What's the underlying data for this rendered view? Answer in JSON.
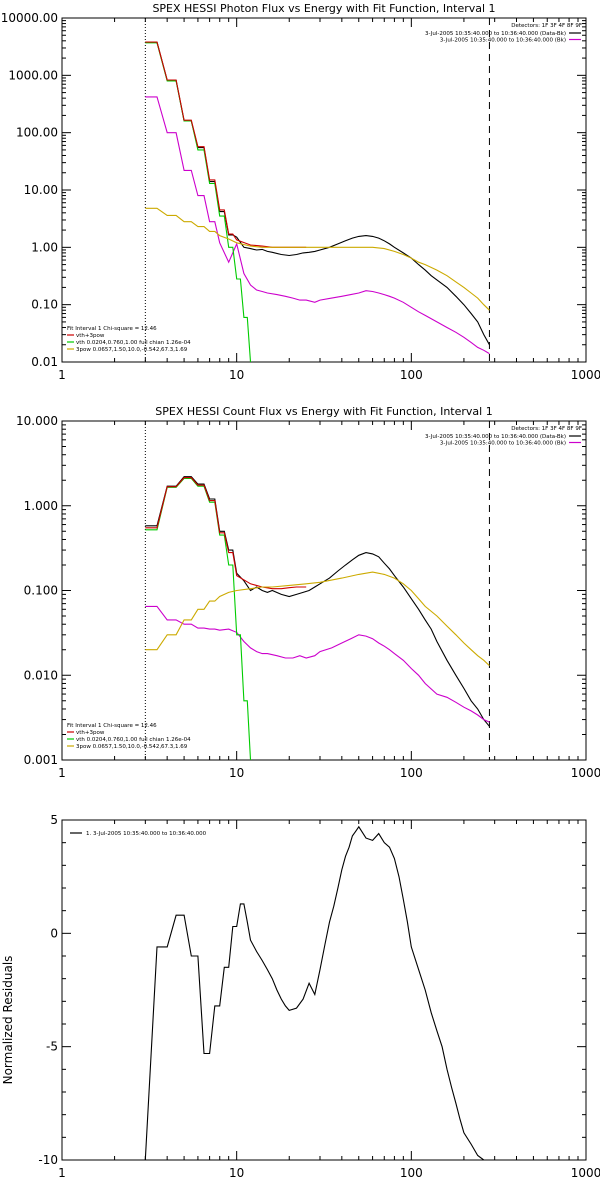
{
  "chart_data": [
    {
      "type": "line",
      "title": "SPEX HESSI Photon Flux vs Energy with Fit Function, Interval 1",
      "x_scale": "log",
      "y_scale": "log",
      "xlim": [
        1,
        1000
      ],
      "ylim": [
        0.01,
        10000
      ],
      "x_tick_labels": [
        "1",
        "10",
        "100",
        "1000"
      ],
      "y_tick_labels": [
        "0.01",
        "0.10",
        "1.00",
        "10.00",
        "100.00",
        "1000.00",
        "10000.00"
      ],
      "y_ticks": [
        0.01,
        0.1,
        1,
        10,
        100,
        1000,
        10000
      ],
      "vlines": [
        {
          "x": 3,
          "style": "dotted"
        },
        {
          "x": 280,
          "style": "dashed"
        }
      ],
      "detectors_text": "Detectors: 1F 3F 4F 8F 9F",
      "legend_top": [
        {
          "text": "3-Jul-2005 10:35:40.000 to 10:36:40.000 (Data-Bk)",
          "color": "#000000"
        },
        {
          "text": "3-Jul-2005 10:35:40.000 to 10:36:40.000 (Bk)",
          "color": "#cc00cc"
        }
      ],
      "fit_legend": [
        {
          "text": "Fit Interval 1   Chi-square = 12.46",
          "color": "#000000"
        },
        {
          "text": "vth+3pow",
          "color": "#cc0000"
        },
        {
          "text": "vth 0.0204,0.760,1.00  full chian 1.26e-04",
          "color": "#00cc00"
        },
        {
          "text": "3pow 0.0657,1.50,10.0,-0.542,67.3,1.69",
          "color": "#ccaa00"
        }
      ],
      "series": [
        {
          "color": "#000000",
          "x": [
            3,
            3.5,
            4,
            4.5,
            5,
            5.5,
            6,
            6.5,
            7,
            7.5,
            8,
            8.5,
            9,
            9.5,
            10,
            11,
            12,
            13,
            14,
            15,
            16,
            18,
            20,
            22,
            24,
            26,
            28,
            30,
            34,
            38,
            42,
            46,
            50,
            55,
            60,
            65,
            70,
            75,
            80,
            90,
            100,
            110,
            120,
            130,
            140,
            160,
            180,
            200,
            220,
            240,
            260,
            280
          ],
          "y": [
            3800,
            3800,
            820,
            820,
            160,
            160,
            55,
            55,
            14,
            14,
            4.2,
            4.2,
            1.65,
            1.65,
            1.5,
            1.0,
            0.95,
            0.9,
            0.92,
            0.85,
            0.82,
            0.75,
            0.72,
            0.75,
            0.8,
            0.82,
            0.85,
            0.9,
            1.0,
            1.15,
            1.3,
            1.45,
            1.55,
            1.6,
            1.55,
            1.45,
            1.3,
            1.15,
            1.0,
            0.8,
            0.65,
            0.5,
            0.4,
            0.32,
            0.27,
            0.2,
            0.14,
            0.1,
            0.07,
            0.05,
            0.03,
            0.02
          ]
        },
        {
          "color": "#cc00cc",
          "x": [
            3,
            3.5,
            4,
            4.5,
            5,
            5.5,
            6,
            6.5,
            7,
            7.5,
            8,
            9,
            10,
            11,
            12,
            13,
            14,
            15,
            17,
            19,
            21,
            23,
            25,
            28,
            30,
            35,
            40,
            45,
            50,
            55,
            60,
            65,
            70,
            75,
            80,
            90,
            100,
            110,
            120,
            140,
            160,
            180,
            200,
            220,
            240,
            260,
            280
          ],
          "y": [
            420,
            420,
            100,
            100,
            22,
            22,
            8,
            8,
            2.8,
            2.8,
            1.2,
            0.55,
            1.15,
            0.35,
            0.22,
            0.18,
            0.17,
            0.16,
            0.15,
            0.14,
            0.13,
            0.12,
            0.12,
            0.11,
            0.12,
            0.13,
            0.14,
            0.15,
            0.16,
            0.175,
            0.17,
            0.16,
            0.15,
            0.14,
            0.13,
            0.11,
            0.09,
            0.075,
            0.065,
            0.05,
            0.04,
            0.033,
            0.027,
            0.022,
            0.018,
            0.016,
            0.014
          ]
        },
        {
          "color": "#00cc00",
          "x": [
            3,
            3.5,
            4,
            4.5,
            5,
            5.5,
            6,
            6.5,
            7,
            7.5,
            8,
            8.5,
            9,
            9.5,
            10,
            10.5,
            11,
            11.5,
            12
          ],
          "y": [
            3700,
            3700,
            800,
            800,
            160,
            160,
            50,
            50,
            13,
            13,
            3.5,
            3.5,
            1.0,
            1.0,
            0.28,
            0.28,
            0.06,
            0.06,
            0.01
          ]
        },
        {
          "color": "#cc0000",
          "x": [
            3,
            3.5,
            4,
            4.5,
            5,
            5.5,
            6,
            6.5,
            7,
            7.5,
            8,
            8.5,
            9,
            9.5,
            10,
            12,
            14,
            16,
            18,
            20,
            22,
            25
          ],
          "y": [
            3800,
            3800,
            830,
            830,
            165,
            165,
            57,
            57,
            15,
            15,
            4.5,
            4.5,
            1.7,
            1.7,
            1.35,
            1.1,
            1.05,
            1.0,
            1.0,
            1.0,
            1.0,
            1.0
          ]
        },
        {
          "color": "#ccaa00",
          "x": [
            3,
            3.5,
            4,
            4.5,
            5,
            5.5,
            6,
            6.5,
            7,
            7.5,
            8,
            9,
            10,
            12,
            14,
            16,
            20,
            25,
            30,
            40,
            50,
            60,
            70,
            80,
            90,
            100,
            110,
            120,
            140,
            160,
            180,
            200,
            220,
            240,
            260,
            280
          ],
          "y": [
            4.8,
            4.8,
            3.6,
            3.6,
            2.8,
            2.8,
            2.3,
            2.3,
            1.9,
            1.9,
            1.6,
            1.4,
            1.2,
            1.05,
            1.0,
            1.0,
            1.0,
            1.0,
            1.0,
            1.0,
            1.0,
            1.0,
            0.95,
            0.85,
            0.75,
            0.65,
            0.55,
            0.5,
            0.4,
            0.32,
            0.25,
            0.2,
            0.16,
            0.13,
            0.1,
            0.08
          ]
        }
      ]
    },
    {
      "type": "line",
      "title": "SPEX HESSI Count Flux vs Energy with Fit Function, Interval 1",
      "x_scale": "log",
      "y_scale": "log",
      "xlim": [
        1,
        1000
      ],
      "ylim": [
        0.001,
        10
      ],
      "x_tick_labels": [
        "1",
        "10",
        "100",
        "1000"
      ],
      "y_tick_labels": [
        "0.001",
        "0.010",
        "0.100",
        "1.000",
        "10.000"
      ],
      "y_ticks": [
        0.001,
        0.01,
        0.1,
        1,
        10
      ],
      "vlines": [
        {
          "x": 3,
          "style": "dotted"
        },
        {
          "x": 280,
          "style": "dashed"
        }
      ],
      "detectors_text": "Detectors: 1F 3F 4F 8F 9F",
      "legend_top": [
        {
          "text": "3-Jul-2005 10:35:40.000 to 10:36:40.000 (Data-Bk)",
          "color": "#000000"
        },
        {
          "text": "3-Jul-2005 10:35:40.000 to 10:36:40.000 (Bk)",
          "color": "#cc00cc"
        }
      ],
      "fit_legend": [
        {
          "text": "Fit Interval 1   Chi-square = 12.46",
          "color": "#000000"
        },
        {
          "text": "vth+3pow",
          "color": "#cc0000"
        },
        {
          "text": "vth 0.0204,0.760,1.00  full chian 1.26e-04",
          "color": "#00cc00"
        },
        {
          "text": "3pow 0.0657,1.50,10.0,-0.542,67.3,1.69",
          "color": "#ccaa00"
        }
      ],
      "series": [
        {
          "color": "#000000",
          "x": [
            3,
            3.5,
            4,
            4.5,
            5,
            5.5,
            6,
            6.5,
            7,
            7.5,
            8,
            8.5,
            9,
            9.5,
            10,
            11,
            12,
            13,
            14,
            15,
            16,
            18,
            20,
            22,
            24,
            26,
            28,
            30,
            34,
            38,
            42,
            46,
            50,
            55,
            60,
            65,
            70,
            75,
            80,
            90,
            100,
            110,
            120,
            130,
            140,
            160,
            180,
            200,
            220,
            240,
            260,
            280
          ],
          "y": [
            0.58,
            0.58,
            1.7,
            1.7,
            2.2,
            2.2,
            1.8,
            1.8,
            1.2,
            1.2,
            0.5,
            0.5,
            0.3,
            0.3,
            0.16,
            0.13,
            0.1,
            0.11,
            0.1,
            0.095,
            0.1,
            0.09,
            0.085,
            0.09,
            0.095,
            0.1,
            0.11,
            0.12,
            0.14,
            0.17,
            0.2,
            0.23,
            0.26,
            0.28,
            0.27,
            0.25,
            0.21,
            0.18,
            0.15,
            0.11,
            0.08,
            0.06,
            0.045,
            0.035,
            0.025,
            0.015,
            0.01,
            0.007,
            0.005,
            0.004,
            0.003,
            0.0025
          ]
        },
        {
          "color": "#cc00cc",
          "x": [
            3,
            3.5,
            4,
            4.5,
            5,
            5.5,
            6,
            6.5,
            7,
            7.5,
            8,
            9,
            10,
            11,
            12,
            13,
            14,
            15,
            17,
            19,
            21,
            23,
            25,
            28,
            30,
            35,
            40,
            45,
            50,
            55,
            60,
            65,
            70,
            75,
            80,
            90,
            100,
            110,
            120,
            140,
            160,
            180,
            200,
            220,
            240,
            260,
            280
          ],
          "y": [
            0.065,
            0.065,
            0.045,
            0.045,
            0.04,
            0.04,
            0.036,
            0.036,
            0.035,
            0.035,
            0.034,
            0.035,
            0.032,
            0.025,
            0.021,
            0.019,
            0.018,
            0.018,
            0.017,
            0.016,
            0.016,
            0.017,
            0.016,
            0.017,
            0.019,
            0.021,
            0.024,
            0.027,
            0.03,
            0.029,
            0.027,
            0.024,
            0.022,
            0.02,
            0.018,
            0.015,
            0.012,
            0.01,
            0.008,
            0.006,
            0.0055,
            0.0048,
            0.0042,
            0.0038,
            0.0034,
            0.003,
            0.0028
          ]
        },
        {
          "color": "#00cc00",
          "x": [
            3,
            3.5,
            4,
            4.5,
            5,
            5.5,
            6,
            6.5,
            7,
            7.5,
            8,
            8.5,
            9,
            9.5,
            10,
            10.5,
            11,
            11.5,
            12
          ],
          "y": [
            0.52,
            0.52,
            1.65,
            1.65,
            2.1,
            2.1,
            1.7,
            1.7,
            1.1,
            1.1,
            0.45,
            0.45,
            0.2,
            0.2,
            0.03,
            0.03,
            0.005,
            0.005,
            0.001
          ]
        },
        {
          "color": "#cc0000",
          "x": [
            3,
            3.5,
            4,
            4.5,
            5,
            5.5,
            6,
            6.5,
            7,
            7.5,
            8,
            8.5,
            9,
            9.5,
            10,
            12,
            14,
            16,
            18,
            20,
            22,
            25
          ],
          "y": [
            0.55,
            0.55,
            1.68,
            1.68,
            2.15,
            2.15,
            1.75,
            1.75,
            1.15,
            1.15,
            0.48,
            0.48,
            0.28,
            0.28,
            0.15,
            0.12,
            0.11,
            0.105,
            0.105,
            0.108,
            0.11,
            0.11
          ]
        },
        {
          "color": "#ccaa00",
          "x": [
            3,
            3.5,
            4,
            4.5,
            5,
            5.5,
            6,
            6.5,
            7,
            7.5,
            8,
            9,
            10,
            12,
            14,
            16,
            20,
            25,
            30,
            40,
            50,
            60,
            70,
            80,
            90,
            100,
            110,
            120,
            140,
            160,
            180,
            200,
            220,
            240,
            260,
            280
          ],
          "y": [
            0.02,
            0.02,
            0.03,
            0.03,
            0.045,
            0.045,
            0.06,
            0.06,
            0.075,
            0.075,
            0.085,
            0.095,
            0.1,
            0.105,
            0.11,
            0.11,
            0.115,
            0.12,
            0.125,
            0.14,
            0.155,
            0.165,
            0.155,
            0.14,
            0.12,
            0.1,
            0.08,
            0.065,
            0.05,
            0.038,
            0.03,
            0.024,
            0.02,
            0.017,
            0.015,
            0.013
          ]
        }
      ]
    },
    {
      "type": "line",
      "title": "",
      "ylabel": "Normalized Residuals",
      "x_scale": "log",
      "y_scale": "linear",
      "xlim": [
        1,
        1000
      ],
      "ylim": [
        -10,
        5
      ],
      "x_tick_labels": [
        "1",
        "10",
        "100",
        "1000"
      ],
      "y_tick_labels": [
        "5",
        "0",
        "-5",
        "-10"
      ],
      "y_ticks": [
        5,
        0,
        -5,
        -10
      ],
      "legend_text": "1. 3-Jul-2005 10:35:40.000 to 10:36:40.000",
      "series": [
        {
          "color": "#000000",
          "x": [
            3,
            3.5,
            4,
            4.5,
            5,
            5.5,
            6,
            6.5,
            7,
            7.5,
            8,
            8.5,
            9,
            9.5,
            10,
            10.5,
            11,
            11.5,
            12,
            13,
            14,
            15,
            16,
            17,
            18,
            19,
            20,
            22,
            24,
            26,
            28,
            30,
            32,
            34,
            36,
            38,
            40,
            42,
            44,
            46,
            48,
            50,
            55,
            60,
            65,
            70,
            75,
            80,
            85,
            90,
            95,
            100,
            110,
            120,
            130,
            140,
            150,
            160,
            170,
            180,
            190,
            200,
            220,
            240,
            260,
            280
          ],
          "y": [
            -10,
            -0.6,
            -0.6,
            0.8,
            0.8,
            -1.0,
            -1.0,
            -5.3,
            -5.3,
            -3.2,
            -3.2,
            -1.5,
            -1.5,
            0.3,
            0.3,
            1.3,
            1.3,
            0.5,
            -0.3,
            -0.8,
            -1.2,
            -1.6,
            -2.0,
            -2.5,
            -2.9,
            -3.2,
            -3.4,
            -3.3,
            -2.9,
            -2.2,
            -2.7,
            -1.6,
            -0.5,
            0.5,
            1.2,
            2.0,
            2.8,
            3.4,
            3.8,
            4.3,
            4.5,
            4.7,
            4.2,
            4.1,
            4.4,
            4.0,
            3.8,
            3.3,
            2.5,
            1.5,
            0.5,
            -0.6,
            -1.6,
            -2.5,
            -3.5,
            -4.3,
            -5.0,
            -6.0,
            -6.8,
            -7.5,
            -8.2,
            -8.8,
            -9.3,
            -9.8,
            -10,
            -10
          ]
        }
      ]
    }
  ]
}
